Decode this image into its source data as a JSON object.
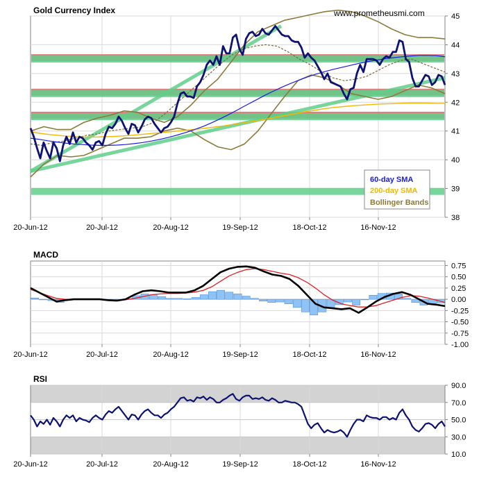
{
  "site": "www.prometheusmi.com",
  "chart_data": [
    {
      "type": "line",
      "title": "Gold Currency Index",
      "x_tick_labels": [
        "20-Jun-12",
        "20-Jul-12",
        "20-Aug-12",
        "19-Sep-12",
        "18-Oct-12",
        "16-Nov-12"
      ],
      "ylim": [
        38,
        45
      ],
      "y_ticks": [
        38,
        39,
        40,
        41,
        42,
        43,
        44,
        45
      ],
      "legend": {
        "placement": "bottom-right",
        "entries": [
          "60-day SMA",
          "200-day SMA",
          "Bollinger Bands"
        ]
      },
      "colors": {
        "price": "#0d1273",
        "sma60": "#1a1ae6",
        "sma200": "#f2b800",
        "bollinger": "#8b7a3a",
        "sma20": "#7a6a40",
        "support": "#5fcf8a",
        "resistance": "#d96a6a",
        "trendline": "#5fcf8a"
      },
      "series": [
        {
          "name": "",
          "role": "price",
          "values": [
            41.1,
            40.8,
            40.4,
            40.05,
            40.6,
            40.3,
            40.05,
            40.6,
            40.4,
            39.95,
            40.5,
            40.8,
            40.55,
            40.95,
            40.6,
            40.8,
            40.75,
            40.6,
            40.5,
            40.35,
            40.6,
            40.65,
            40.5,
            40.9,
            41.15,
            41.1,
            41.25,
            41.5,
            41.35,
            41.1,
            40.9,
            41.25,
            41.2,
            40.95,
            41.15,
            41.4,
            41.5,
            41.45,
            41.25,
            41.1,
            40.95,
            41.1,
            41.15,
            41.3,
            41.5,
            41.95,
            42.3,
            42.35,
            42.2,
            42.2,
            42.15,
            42.55,
            42.7,
            42.95,
            43.3,
            43.45,
            43.3,
            43.6,
            43.3,
            43.95,
            43.7,
            43.7,
            44.25,
            44.35,
            43.85,
            43.65,
            44.2,
            44.4,
            44.45,
            44.3,
            44.35,
            44.55,
            44.4,
            44.35,
            44.5,
            44.65,
            44.5,
            44.35,
            44.3,
            44.3,
            44.15,
            44.1,
            44.1,
            43.9,
            43.55,
            43.7,
            43.55,
            43.45,
            43.25,
            43.05,
            42.8,
            43.0,
            42.7,
            42.65,
            42.6,
            42.55,
            42.3,
            42.1,
            42.45,
            42.5,
            43.0,
            43.3,
            43.05,
            43.5,
            43.5,
            43.5,
            43.45,
            43.3,
            43.5,
            43.6,
            43.55,
            43.75,
            43.75,
            44.15,
            44.1,
            43.5,
            43.4,
            42.85,
            42.55,
            42.55,
            42.75,
            42.95,
            42.9,
            42.6,
            42.7,
            42.95,
            42.9,
            42.6
          ]
        },
        {
          "name": "60-day SMA",
          "role": "sma60",
          "values": [
            40.75,
            40.71,
            40.66,
            40.62,
            40.58,
            40.55,
            40.53,
            40.51,
            40.5,
            40.5,
            40.51,
            40.53,
            40.56,
            40.6,
            40.65,
            40.71,
            40.78,
            40.86,
            40.95,
            41.05,
            41.16,
            41.29,
            41.43,
            41.58,
            41.74,
            41.9,
            42.06,
            42.22,
            42.37,
            42.51,
            42.64,
            42.76,
            42.87,
            42.97,
            43.06,
            43.14,
            43.21,
            43.28,
            43.35,
            43.41,
            43.46,
            43.51,
            43.55,
            43.58,
            43.61,
            43.63,
            43.63,
            43.62,
            43.58
          ]
        },
        {
          "name": "200-day SMA",
          "role": "sma200",
          "values": [
            40.97,
            40.92,
            40.88,
            40.85,
            40.82,
            40.8,
            40.79,
            40.79,
            40.8,
            40.81,
            40.83,
            40.85,
            40.88,
            40.91,
            40.94,
            40.97,
            41.0,
            41.03,
            41.06,
            41.1,
            41.14,
            41.18,
            41.23,
            41.28,
            41.33,
            41.38,
            41.44,
            41.5,
            41.56,
            41.62,
            41.68,
            41.73,
            41.78,
            41.82,
            41.85,
            41.88,
            41.9,
            41.92,
            41.94,
            41.95,
            41.96,
            41.97,
            41.97,
            41.97,
            41.96,
            41.96
          ]
        },
        {
          "name": "Bollinger Bands",
          "role": "bollinger_upper",
          "values": [
            41.0,
            41.15,
            41.05,
            41.05,
            41.3,
            41.45,
            41.55,
            41.7,
            41.65,
            41.45,
            41.3,
            41.5,
            41.9,
            42.4,
            42.8,
            43.4,
            44.0,
            44.45,
            44.65,
            44.85,
            44.95,
            45.05,
            45.15,
            45.2,
            45.15,
            45.0,
            44.8,
            44.55,
            44.35,
            44.25,
            44.25,
            44.2
          ]
        },
        {
          "name": "Bollinger Bands",
          "role": "bollinger_lower",
          "values": [
            39.4,
            39.85,
            40.15,
            40.1,
            40.15,
            40.35,
            40.55,
            40.75,
            40.75,
            40.8,
            41.0,
            41.1,
            41.0,
            40.7,
            40.45,
            40.35,
            40.55,
            41.0,
            41.6,
            42.2,
            42.75,
            42.95,
            42.85,
            42.6,
            42.3,
            42.2,
            42.1,
            42.2,
            42.4,
            42.6,
            42.5,
            42.3
          ]
        },
        {
          "name": "",
          "role": "sma20",
          "values": [
            40.55,
            40.5,
            40.6,
            40.65,
            40.75,
            40.85,
            40.9,
            41.0,
            41.05,
            41.1,
            41.15,
            41.3,
            41.6,
            41.95,
            42.3,
            42.65,
            43.0,
            43.35,
            43.65,
            43.85,
            43.95,
            44.0,
            43.95,
            43.75,
            43.5,
            43.3,
            43.05,
            42.85,
            42.75,
            42.8,
            42.9,
            43.1,
            43.3,
            43.45,
            43.5,
            43.35,
            43.2,
            43.05
          ]
        },
        {
          "name": "",
          "role": "trendline_1",
          "values": [
            39.6,
            44.65
          ]
        },
        {
          "name": "",
          "role": "trendline_2",
          "values": [
            39.6,
            42.85
          ]
        }
      ],
      "horizontal_bands": [
        {
          "role": "resistance",
          "value": 43.55
        },
        {
          "role": "resistance",
          "value": 42.35
        },
        {
          "role": "resistance",
          "value": 41.55
        },
        {
          "role": "support",
          "value": 43.5
        },
        {
          "role": "support",
          "value": 42.3
        },
        {
          "role": "support",
          "value": 41.5
        },
        {
          "role": "support",
          "value": 38.9
        }
      ]
    },
    {
      "type": "line",
      "title": "MACD",
      "x_tick_labels": [
        "20-Jun-12",
        "20-Jul-12",
        "20-Aug-12",
        "19-Sep-12",
        "18-Oct-12",
        "16-Nov-12"
      ],
      "ylim": [
        -1.0,
        0.85
      ],
      "y_tick_labels": [
        "0.75",
        "0.50",
        "0.25",
        "0.00",
        "-0.25",
        "-0.50",
        "-0.75",
        "-1.00"
      ],
      "series": [
        {
          "name": "",
          "role": "macd",
          "values": [
            0.25,
            0.15,
            0.05,
            -0.05,
            -0.02,
            0.0,
            0.0,
            0.0,
            0.0,
            -0.02,
            -0.03,
            0.0,
            0.1,
            0.18,
            0.2,
            0.18,
            0.15,
            0.15,
            0.15,
            0.2,
            0.3,
            0.45,
            0.6,
            0.68,
            0.72,
            0.73,
            0.7,
            0.62,
            0.55,
            0.52,
            0.45,
            0.3,
            0.1,
            -0.1,
            -0.18,
            -0.2,
            -0.22,
            -0.2,
            -0.3,
            -0.18,
            -0.05,
            0.05,
            0.12,
            0.16,
            0.1,
            0.0,
            -0.1,
            -0.12,
            -0.15
          ]
        },
        {
          "name": "",
          "role": "signal",
          "values": [
            0.22,
            0.15,
            0.08,
            0.02,
            0.0,
            0.0,
            0.0,
            0.0,
            0.0,
            -0.01,
            -0.02,
            -0.01,
            0.02,
            0.06,
            0.1,
            0.12,
            0.13,
            0.13,
            0.14,
            0.16,
            0.2,
            0.28,
            0.4,
            0.52,
            0.6,
            0.66,
            0.68,
            0.66,
            0.62,
            0.58,
            0.55,
            0.48,
            0.38,
            0.25,
            0.1,
            -0.02,
            -0.1,
            -0.14,
            -0.17,
            -0.17,
            -0.14,
            -0.08,
            -0.02,
            0.04,
            0.08,
            0.07,
            0.03,
            -0.02,
            -0.07
          ]
        },
        {
          "name": "",
          "role": "histogram",
          "values": [
            0.03,
            0.0,
            -0.03,
            -0.07,
            -0.02,
            0.0,
            0.0,
            0.0,
            0.0,
            -0.01,
            -0.01,
            0.01,
            0.08,
            0.12,
            0.1,
            0.06,
            0.02,
            0.02,
            0.01,
            0.04,
            0.1,
            0.17,
            0.2,
            0.16,
            0.12,
            0.07,
            0.02,
            -0.04,
            -0.07,
            -0.06,
            -0.1,
            -0.18,
            -0.28,
            -0.35,
            -0.28,
            -0.18,
            -0.12,
            -0.06,
            -0.13,
            -0.01,
            0.09,
            0.13,
            0.14,
            0.12,
            0.02,
            -0.07,
            -0.13,
            -0.1,
            -0.08
          ]
        }
      ]
    },
    {
      "type": "line",
      "title": "RSI",
      "x_tick_labels": [
        "20-Jun-12",
        "20-Jul-12",
        "20-Aug-12",
        "19-Sep-12",
        "18-Oct-12",
        "16-Nov-12"
      ],
      "ylim": [
        10,
        90
      ],
      "y_tick_labels": [
        "90.0",
        "70.0",
        "50.0",
        "30.0",
        "10.0"
      ],
      "shaded_bands": [
        [
          70,
          90
        ],
        [
          10,
          30
        ]
      ],
      "series": [
        {
          "name": "",
          "role": "rsi",
          "values": [
            55,
            50,
            42,
            48,
            45,
            50,
            44,
            52,
            48,
            42,
            50,
            55,
            52,
            55,
            48,
            52,
            50,
            49,
            47,
            52,
            55,
            52,
            50,
            56,
            60,
            58,
            62,
            65,
            60,
            55,
            50,
            56,
            55,
            50,
            56,
            60,
            62,
            58,
            55,
            55,
            52,
            56,
            58,
            62,
            65,
            70,
            75,
            76,
            72,
            73,
            71,
            76,
            75,
            77,
            73,
            76,
            74,
            70,
            70,
            73,
            75,
            78,
            80,
            74,
            72,
            76,
            78,
            78,
            74,
            75,
            74,
            76,
            73,
            72,
            75,
            73,
            70,
            70,
            72,
            71,
            70,
            70,
            68,
            65,
            55,
            45,
            40,
            44,
            46,
            40,
            35,
            38,
            36,
            35,
            36,
            38,
            35,
            30,
            38,
            45,
            50,
            50,
            48,
            55,
            53,
            52,
            52,
            50,
            53,
            53,
            50,
            52,
            50,
            58,
            62,
            55,
            50,
            42,
            38,
            36,
            40,
            45,
            46,
            44,
            40,
            45,
            48,
            42
          ]
        }
      ]
    }
  ]
}
